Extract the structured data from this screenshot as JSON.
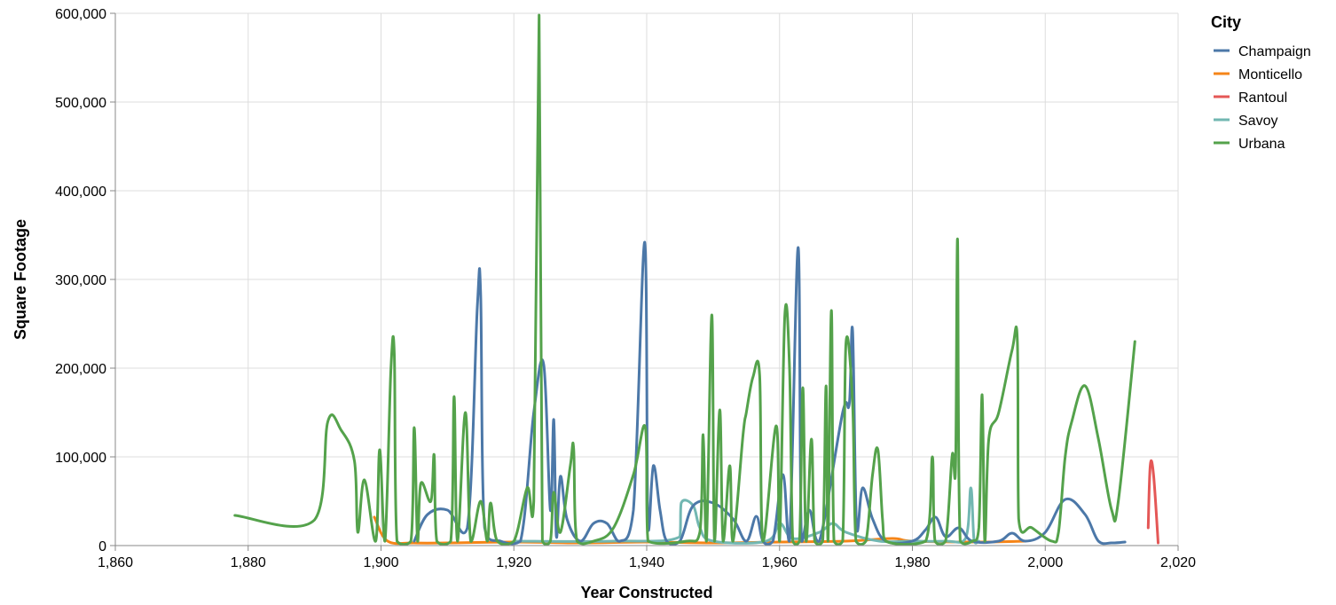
{
  "chart_data": {
    "type": "line",
    "interpolation": "smooth",
    "xlabel": "Year Constructed",
    "ylabel": "Square Footage",
    "xlim": [
      1860,
      2020
    ],
    "ylim": [
      0,
      600000
    ],
    "x_ticks": [
      1860,
      1880,
      1900,
      1920,
      1940,
      1960,
      1980,
      2000,
      2020
    ],
    "y_ticks": [
      0,
      100000,
      200000,
      300000,
      400000,
      500000,
      600000
    ],
    "x_tick_labels": [
      "1,860",
      "1,880",
      "1,900",
      "1,920",
      "1,940",
      "1,960",
      "1,980",
      "2,000",
      "2,020"
    ],
    "y_tick_labels": [
      "0",
      "100,000",
      "200,000",
      "300,000",
      "400,000",
      "500,000",
      "600,000"
    ],
    "grid": true,
    "legend": {
      "title": "City",
      "position": "top-right"
    },
    "series": [
      {
        "name": "Champaign",
        "color": "#4c78a8",
        "points": [
          [
            1905,
            5000
          ],
          [
            1907,
            35000
          ],
          [
            1910,
            40000
          ],
          [
            1913,
            20000
          ],
          [
            1914.5,
            270000
          ],
          [
            1915,
            284000
          ],
          [
            1915.6,
            20000
          ],
          [
            1918,
            5000
          ],
          [
            1921,
            5000
          ],
          [
            1923,
            150000
          ],
          [
            1924.5,
            204000
          ],
          [
            1925.5,
            40000
          ],
          [
            1926,
            142000
          ],
          [
            1926.4,
            10000
          ],
          [
            1927,
            78000
          ],
          [
            1928,
            30000
          ],
          [
            1930,
            5000
          ],
          [
            1932,
            25000
          ],
          [
            1934,
            25000
          ],
          [
            1936,
            5000
          ],
          [
            1938,
            40000
          ],
          [
            1939.7,
            342000
          ],
          [
            1940.2,
            20000
          ],
          [
            1941,
            90000
          ],
          [
            1942,
            40000
          ],
          [
            1943,
            5000
          ],
          [
            1945,
            5000
          ],
          [
            1947,
            45000
          ],
          [
            1950,
            48000
          ],
          [
            1953,
            30000
          ],
          [
            1955,
            5000
          ],
          [
            1956.5,
            33000
          ],
          [
            1957.5,
            5000
          ],
          [
            1959,
            5000
          ],
          [
            1960.5,
            80000
          ],
          [
            1961.5,
            5000
          ],
          [
            1962.8,
            336000
          ],
          [
            1963.3,
            5000
          ],
          [
            1964.5,
            40000
          ],
          [
            1966,
            5000
          ],
          [
            1969.5,
            150000
          ],
          [
            1970.5,
            160000
          ],
          [
            1971,
            242000
          ],
          [
            1971.6,
            20000
          ],
          [
            1972.5,
            65000
          ],
          [
            1974,
            30000
          ],
          [
            1976,
            5000
          ],
          [
            1980,
            5000
          ],
          [
            1982,
            18000
          ],
          [
            1983.5,
            32000
          ],
          [
            1985,
            10000
          ],
          [
            1987,
            20000
          ],
          [
            1989,
            5000
          ],
          [
            1993,
            5000
          ],
          [
            1995,
            14000
          ],
          [
            1997,
            5000
          ],
          [
            2000,
            15000
          ],
          [
            2003,
            52000
          ],
          [
            2006,
            35000
          ],
          [
            2008,
            5000
          ],
          [
            2010,
            3000
          ],
          [
            2012,
            4000
          ]
        ]
      },
      {
        "name": "Monticello",
        "color": "#f58518",
        "points": [
          [
            1899,
            32000
          ],
          [
            1901,
            5000
          ],
          [
            1905,
            3000
          ],
          [
            1910,
            3000
          ],
          [
            1920,
            4000
          ],
          [
            1930,
            3000
          ],
          [
            1940,
            4000
          ],
          [
            1950,
            3000
          ],
          [
            1960,
            4000
          ],
          [
            1970,
            5000
          ],
          [
            1977,
            8000
          ],
          [
            1980,
            5000
          ],
          [
            1990,
            4000
          ],
          [
            1997,
            5000
          ]
        ]
      },
      {
        "name": "Rantoul",
        "color": "#e45756",
        "points": [
          [
            2015.5,
            20000
          ],
          [
            2015.8,
            90000
          ],
          [
            2016.3,
            80000
          ],
          [
            2017,
            3000
          ]
        ]
      },
      {
        "name": "Savoy",
        "color": "#72b7b2",
        "points": [
          [
            1920,
            5000
          ],
          [
            1935,
            5000
          ],
          [
            1945,
            10000
          ],
          [
            1945.2,
            48000
          ],
          [
            1947,
            45000
          ],
          [
            1948,
            20000
          ],
          [
            1950,
            5000
          ],
          [
            1958,
            5000
          ],
          [
            1960,
            25000
          ],
          [
            1962,
            8000
          ],
          [
            1966,
            15000
          ],
          [
            1968,
            25000
          ],
          [
            1970,
            15000
          ],
          [
            1975,
            5000
          ],
          [
            1980,
            5000
          ],
          [
            1985,
            5000
          ],
          [
            1988,
            8000
          ],
          [
            1988.8,
            65000
          ],
          [
            1989.3,
            5000
          ],
          [
            1990,
            5000
          ]
        ]
      },
      {
        "name": "Urbana",
        "color": "#54a24b",
        "points": [
          [
            1878,
            34000
          ],
          [
            1890,
            29000
          ],
          [
            1892,
            140000
          ],
          [
            1894,
            130000
          ],
          [
            1896,
            95000
          ],
          [
            1896.5,
            15000
          ],
          [
            1897.5,
            74000
          ],
          [
            1899.2,
            5000
          ],
          [
            1899.8,
            108000
          ],
          [
            1900.6,
            5000
          ],
          [
            1901.5,
            200000
          ],
          [
            1902,
            215000
          ],
          [
            1902.4,
            5000
          ],
          [
            1904.5,
            5000
          ],
          [
            1905,
            133000
          ],
          [
            1905.5,
            5000
          ],
          [
            1906,
            70000
          ],
          [
            1907.5,
            50000
          ],
          [
            1908,
            102000
          ],
          [
            1908.4,
            5000
          ],
          [
            1910.5,
            5000
          ],
          [
            1911,
            168000
          ],
          [
            1911.5,
            5000
          ],
          [
            1912.7,
            150000
          ],
          [
            1913.5,
            5000
          ],
          [
            1915,
            50000
          ],
          [
            1916,
            5000
          ],
          [
            1916.5,
            48000
          ],
          [
            1917.5,
            5000
          ],
          [
            1920,
            5000
          ],
          [
            1922,
            65000
          ],
          [
            1923,
            50000
          ],
          [
            1923.8,
            598000
          ],
          [
            1924.3,
            5000
          ],
          [
            1925.5,
            5000
          ],
          [
            1926,
            60000
          ],
          [
            1927,
            15000
          ],
          [
            1928.5,
            90000
          ],
          [
            1929,
            110000
          ],
          [
            1929.5,
            5000
          ],
          [
            1932,
            5000
          ],
          [
            1935,
            20000
          ],
          [
            1938,
            80000
          ],
          [
            1939.8,
            133000
          ],
          [
            1940.2,
            5000
          ],
          [
            1946,
            5000
          ],
          [
            1948,
            15000
          ],
          [
            1948.5,
            125000
          ],
          [
            1949,
            5000
          ],
          [
            1949.8,
            260000
          ],
          [
            1950.2,
            5000
          ],
          [
            1951,
            153000
          ],
          [
            1951.5,
            5000
          ],
          [
            1952.5,
            90000
          ],
          [
            1953,
            5000
          ],
          [
            1954.5,
            125000
          ],
          [
            1955,
            150000
          ],
          [
            1956,
            190000
          ],
          [
            1957,
            192000
          ],
          [
            1957.5,
            5000
          ],
          [
            1959.5,
            135000
          ],
          [
            1960,
            5000
          ],
          [
            1960.8,
            260000
          ],
          [
            1961.5,
            200000
          ],
          [
            1962,
            5000
          ],
          [
            1963,
            5000
          ],
          [
            1963.5,
            178000
          ],
          [
            1964,
            5000
          ],
          [
            1964.8,
            120000
          ],
          [
            1965.3,
            5000
          ],
          [
            1966.5,
            5000
          ],
          [
            1967,
            180000
          ],
          [
            1967.3,
            5000
          ],
          [
            1967.8,
            265000
          ],
          [
            1968.2,
            5000
          ],
          [
            1969.5,
            5000
          ],
          [
            1970,
            228000
          ],
          [
            1971,
            160000
          ],
          [
            1971.5,
            5000
          ],
          [
            1973,
            5000
          ],
          [
            1974,
            80000
          ],
          [
            1974.8,
            108000
          ],
          [
            1975.5,
            30000
          ],
          [
            1976,
            5000
          ],
          [
            1982,
            5000
          ],
          [
            1983,
            100000
          ],
          [
            1983.4,
            5000
          ],
          [
            1985,
            5000
          ],
          [
            1986,
            102000
          ],
          [
            1986.5,
            90000
          ],
          [
            1986.8,
            345000
          ],
          [
            1987.2,
            5000
          ],
          [
            1989,
            5000
          ],
          [
            1990,
            20000
          ],
          [
            1990.5,
            170000
          ],
          [
            1990.9,
            5000
          ],
          [
            1991.5,
            120000
          ],
          [
            1993,
            150000
          ],
          [
            1995,
            220000
          ],
          [
            1995.8,
            231000
          ],
          [
            1996,
            30000
          ],
          [
            1998,
            20000
          ],
          [
            2001,
            5000
          ],
          [
            2002,
            15000
          ],
          [
            2003,
            100000
          ],
          [
            2004,
            140000
          ],
          [
            2006,
            180000
          ],
          [
            2008,
            120000
          ],
          [
            2010,
            40000
          ],
          [
            2011,
            50000
          ],
          [
            2013.5,
            230000
          ]
        ]
      }
    ]
  }
}
